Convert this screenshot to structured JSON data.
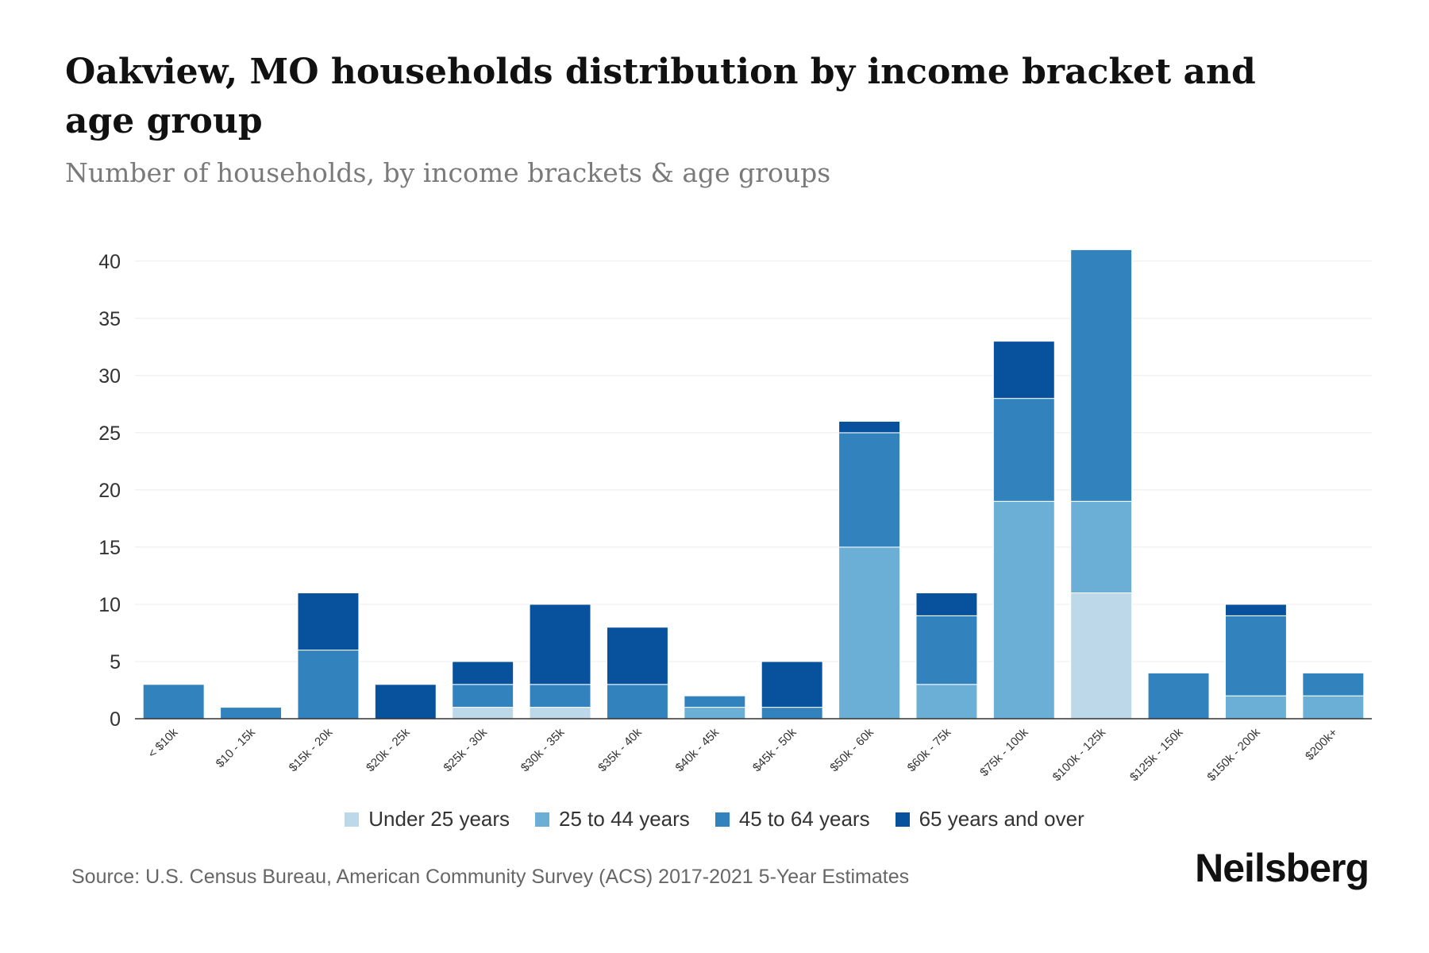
{
  "title": "Oakview, MO households distribution by income bracket and age group",
  "subtitle": "Number of households, by income brackets & age groups",
  "source": "Source: U.S. Census Bureau, American Community Survey (ACS) 2017-2021 5-Year Estimates",
  "brand": "Neilsberg",
  "chart_data": {
    "type": "bar",
    "stacked": true,
    "title": "Oakview, MO households distribution by income bracket and age group",
    "subtitle": "Number of households, by income brackets & age groups",
    "xlabel": "",
    "ylabel": "",
    "ylim": [
      0,
      42
    ],
    "yticks": [
      0,
      5,
      10,
      15,
      20,
      25,
      30,
      35,
      40
    ],
    "grid": true,
    "legend_position": "bottom",
    "categories": [
      "< $10k",
      "$10 - 15k",
      "$15k - 20k",
      "$20k - 25k",
      "$25k - 30k",
      "$30k - 35k",
      "$35k - 40k",
      "$40k - 45k",
      "$45k - 50k",
      "$50k - 60k",
      "$60k - 75k",
      "$75k - 100k",
      "$100k - 125k",
      "$125k - 150k",
      "$150k - 200k",
      "$200k+"
    ],
    "series": [
      {
        "name": "Under 25 years",
        "color": "#bcd8e9",
        "values": [
          0,
          0,
          0,
          0,
          1,
          1,
          0,
          0,
          0,
          0,
          0,
          0,
          11,
          0,
          0,
          0
        ]
      },
      {
        "name": "25 to 44 years",
        "color": "#6baed6",
        "values": [
          0,
          0,
          0,
          0,
          0,
          0,
          0,
          1,
          0,
          15,
          3,
          19,
          8,
          0,
          2,
          2
        ]
      },
      {
        "name": "45 to 64 years",
        "color": "#3182bd",
        "values": [
          3,
          1,
          6,
          0,
          2,
          2,
          3,
          1,
          1,
          10,
          6,
          9,
          22,
          4,
          7,
          2
        ]
      },
      {
        "name": "65 years and over",
        "color": "#08519c",
        "values": [
          0,
          0,
          5,
          3,
          2,
          7,
          5,
          0,
          4,
          1,
          2,
          5,
          0,
          0,
          1,
          0
        ]
      }
    ]
  }
}
